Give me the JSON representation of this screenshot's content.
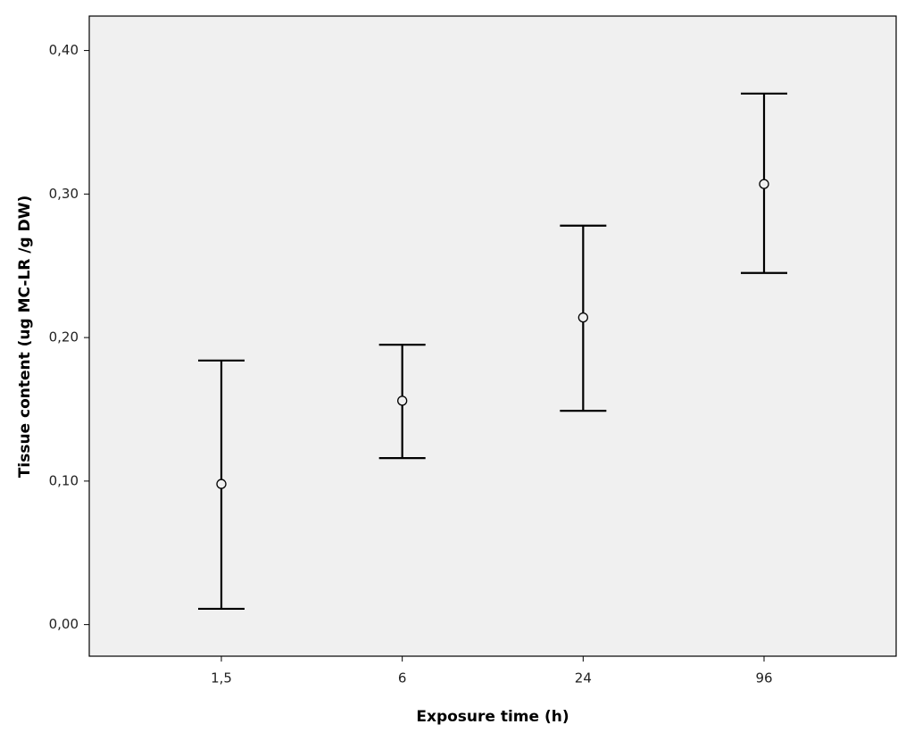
{
  "chart_data": {
    "type": "errorbar",
    "xlabel": "Exposure time (h)",
    "ylabel": "Tissue content (ug MC-LR /g DW)",
    "categories": [
      "1,5",
      "6",
      "24",
      "96"
    ],
    "values": [
      0.098,
      0.156,
      0.214,
      0.307
    ],
    "lower": [
      0.011,
      0.116,
      0.149,
      0.245
    ],
    "upper": [
      0.184,
      0.195,
      0.278,
      0.37
    ],
    "color": "#000000",
    "background": "#f0f0f0",
    "ylim": [
      -0.022,
      0.424
    ],
    "yticks": [
      {
        "value": 0,
        "label": "0,00"
      },
      {
        "value": 0.1,
        "label": "0,10"
      },
      {
        "value": 0.2,
        "label": "0,20"
      },
      {
        "value": 0.3,
        "label": "0,30"
      },
      {
        "value": 0.4,
        "label": "0,40"
      }
    ]
  }
}
